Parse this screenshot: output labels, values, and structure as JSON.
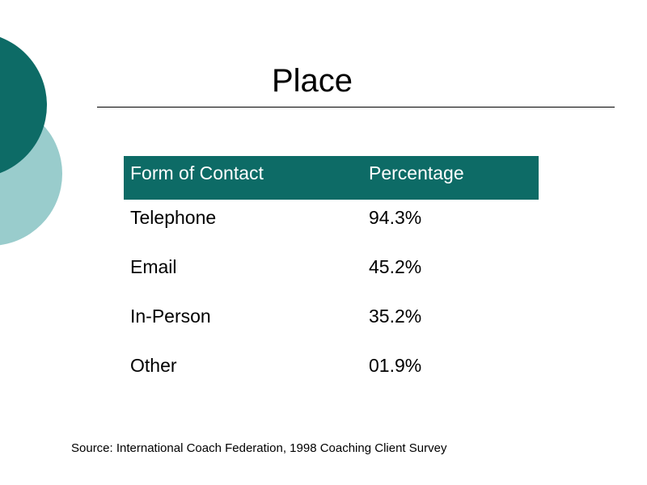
{
  "title": "Place",
  "table": {
    "header": [
      "Form of Contact",
      "Percentage"
    ],
    "rows": [
      [
        "Telephone",
        "94.3%"
      ],
      [
        "Email",
        "45.2%"
      ],
      [
        "In-Person",
        "35.2%"
      ],
      [
        "Other",
        "01.9%"
      ]
    ]
  },
  "source": "Source: International Coach Federation, 1998 Coaching Client Survey"
}
